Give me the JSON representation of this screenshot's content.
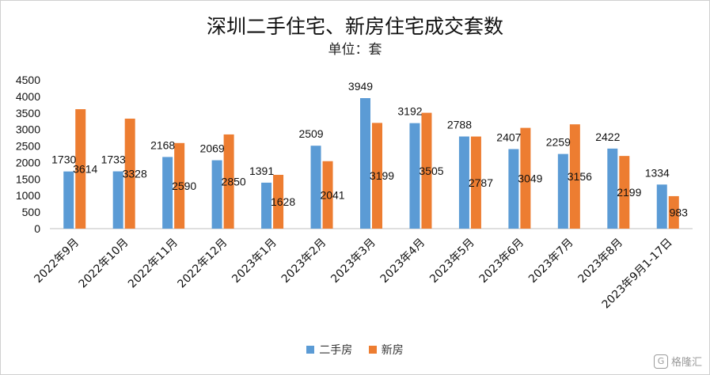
{
  "chart_data": {
    "type": "bar",
    "title": "深圳二手住宅、新房住宅成交套数",
    "subtitle": "单位：套",
    "categories": [
      "2022年9月",
      "2022年10月",
      "2022年11月",
      "2022年12月",
      "2023年1月",
      "2023年2月",
      "2023年3月",
      "2023年4月",
      "2023年5月",
      "2023年6月",
      "2023年7月",
      "2023年8月",
      "2023年9月1-17日"
    ],
    "series": [
      {
        "name": "二手房",
        "color": "#5b9bd5",
        "values": [
          1730,
          1733,
          2168,
          2069,
          1391,
          2509,
          3949,
          3192,
          2788,
          2407,
          2259,
          2422,
          1334
        ]
      },
      {
        "name": "新房",
        "color": "#ed7d31",
        "values": [
          3614,
          3328,
          2590,
          2850,
          1628,
          2041,
          3199,
          3505,
          2787,
          3049,
          3156,
          2199,
          983
        ]
      }
    ],
    "ylim": [
      0,
      4500
    ],
    "yticks": [
      0,
      500,
      1000,
      1500,
      2000,
      2500,
      3000,
      3500,
      4000,
      4500
    ],
    "legend_position": "bottom",
    "grid": false
  },
  "watermark": {
    "logo": "G",
    "text": "格隆汇"
  }
}
